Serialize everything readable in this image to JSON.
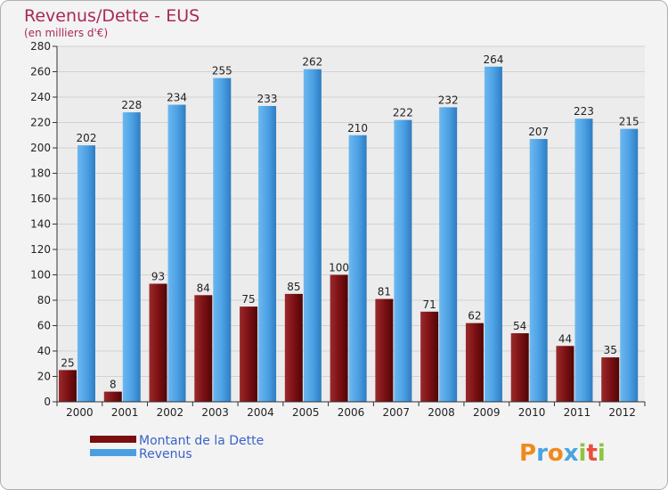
{
  "chart_data": {
    "type": "bar",
    "title": "Revenus/Dette - EUS",
    "subtitle": "(en milliers d'€)",
    "categories": [
      "2000",
      "2001",
      "2002",
      "2003",
      "2004",
      "2005",
      "2006",
      "2007",
      "2008",
      "2009",
      "2010",
      "2011",
      "2012"
    ],
    "series": [
      {
        "name": "Montant de la Dette",
        "color": "#7a0f12",
        "values": [
          25,
          8,
          93,
          84,
          75,
          85,
          100,
          81,
          71,
          62,
          54,
          44,
          35
        ]
      },
      {
        "name": "Revenus",
        "color": "#4a9fe3",
        "values": [
          202,
          228,
          234,
          255,
          233,
          262,
          210,
          222,
          232,
          264,
          207,
          223,
          215
        ]
      }
    ],
    "ylim": [
      0,
      280
    ],
    "ytick_step": 20,
    "grid": true,
    "legend_position": "bottom-left"
  },
  "logo": {
    "letters": [
      "P",
      "r",
      "o",
      "x",
      "i",
      "t",
      "i"
    ],
    "colors": [
      "#f08a1c",
      "#4aa3df",
      "#f08a1c",
      "#4aa3df",
      "#8cc63f",
      "#e94e3c",
      "#8cc63f"
    ]
  }
}
